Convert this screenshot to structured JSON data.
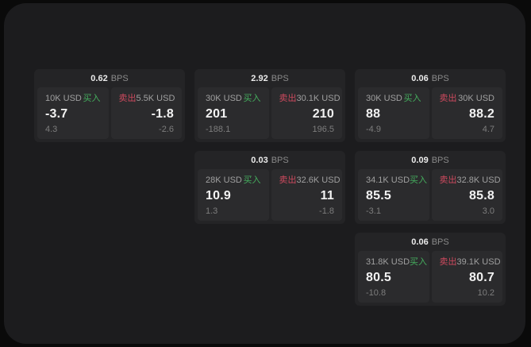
{
  "labels": {
    "bps_unit": "BPS",
    "buy": "买入",
    "sell": "卖出"
  },
  "colors": {
    "buy_green": "#45ae5e",
    "sell_red": "#ce4a5e",
    "panel_bg": "#1c1c1e",
    "card_bg": "#242426",
    "subpanel_bg": "#2b2b2d"
  },
  "cards": [
    {
      "bps": "0.62",
      "col": 1,
      "row": 1,
      "buy": {
        "size": "10K USD",
        "value": "-3.7",
        "delta": "4.3"
      },
      "sell": {
        "size": "5.5K USD",
        "value": "-1.8",
        "delta": "-2.6"
      }
    },
    {
      "bps": "2.92",
      "col": 2,
      "row": 1,
      "buy": {
        "size": "30K USD",
        "value": "201",
        "delta": "-188.1"
      },
      "sell": {
        "size": "30.1K USD",
        "value": "210",
        "delta": "196.5"
      }
    },
    {
      "bps": "0.06",
      "col": 3,
      "row": 1,
      "buy": {
        "size": "30K USD",
        "value": "88",
        "delta": "-4.9"
      },
      "sell": {
        "size": "30K USD",
        "value": "88.2",
        "delta": "4.7"
      }
    },
    {
      "bps": "0.03",
      "col": 2,
      "row": 2,
      "buy": {
        "size": "28K USD",
        "value": "10.9",
        "delta": "1.3"
      },
      "sell": {
        "size": "32.6K USD",
        "value": "11",
        "delta": "-1.8"
      }
    },
    {
      "bps": "0.09",
      "col": 3,
      "row": 2,
      "buy": {
        "size": "34.1K USD",
        "value": "85.5",
        "delta": "-3.1"
      },
      "sell": {
        "size": "32.8K USD",
        "value": "85.8",
        "delta": "3.0"
      }
    },
    {
      "bps": "0.06",
      "col": 3,
      "row": 3,
      "buy": {
        "size": "31.8K USD",
        "value": "80.5",
        "delta": "-10.8"
      },
      "sell": {
        "size": "39.1K USD",
        "value": "80.7",
        "delta": "10.2"
      }
    }
  ]
}
